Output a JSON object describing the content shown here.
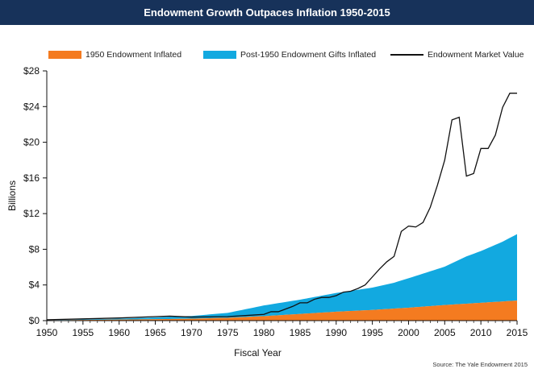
{
  "title": "Endowment Growth Outpaces Inflation 1950-2015",
  "source": "Source: The Yale Endowment 2015",
  "colors": {
    "header": "#17325a",
    "series_1950": "#f47b20",
    "series_post": "#12a9e0",
    "series_market": "#111111"
  },
  "legend": {
    "items": [
      {
        "label": "1950 Endowment Inflated",
        "kind": "swatch"
      },
      {
        "label": "Post-1950 Endowment Gifts Inflated",
        "kind": "swatch"
      },
      {
        "label": "Endowment Market Value",
        "kind": "line"
      }
    ]
  },
  "chart_data": {
    "type": "area",
    "title": "Endowment Growth Outpaces Inflation 1950-2015",
    "xlabel": "Fiscal Year",
    "ylabel": "Billions",
    "xlim": [
      1950,
      2015
    ],
    "ylim": [
      0,
      28
    ],
    "x_ticks": [
      1950,
      1955,
      1960,
      1965,
      1970,
      1975,
      1980,
      1985,
      1990,
      1995,
      2000,
      2005,
      2010,
      2015
    ],
    "y_ticks": [
      0,
      4,
      8,
      12,
      16,
      20,
      24,
      28
    ],
    "y_tick_labels": [
      "$0",
      "$4",
      "$8",
      "$12",
      "$16",
      "$20",
      "$24",
      "$28"
    ],
    "legend_position": "top",
    "grid": false,
    "series": [
      {
        "name": "1950 Endowment Inflated",
        "type": "area",
        "color": "#f47b20",
        "x": [
          1950,
          1955,
          1960,
          1965,
          1970,
          1975,
          1980,
          1985,
          1990,
          1995,
          2000,
          2005,
          2010,
          2015
        ],
        "y": [
          0.03,
          0.08,
          0.12,
          0.16,
          0.22,
          0.32,
          0.5,
          0.75,
          1.0,
          1.2,
          1.45,
          1.75,
          2.0,
          2.25
        ]
      },
      {
        "name": "Post-1950 Endowment Gifts Inflated",
        "type": "area",
        "color": "#12a9e0",
        "x": [
          1950,
          1955,
          1960,
          1965,
          1970,
          1975,
          1980,
          1985,
          1990,
          1995,
          1998,
          2000,
          2003,
          2005,
          2008,
          2010,
          2013,
          2015
        ],
        "y": [
          0.0,
          0.05,
          0.1,
          0.2,
          0.3,
          0.55,
          1.2,
          1.6,
          2.1,
          2.5,
          2.9,
          3.3,
          3.9,
          4.3,
          5.3,
          5.8,
          6.7,
          7.45
        ]
      },
      {
        "name": "Endowment Market Value",
        "type": "line",
        "color": "#111111",
        "x": [
          1950,
          1955,
          1960,
          1965,
          1967,
          1970,
          1975,
          1979,
          1980,
          1981,
          1982,
          1983,
          1984,
          1985,
          1986,
          1987,
          1988,
          1989,
          1990,
          1991,
          1992,
          1993,
          1994,
          1995,
          1996,
          1997,
          1998,
          1999,
          2000,
          2001,
          2002,
          2003,
          2004,
          2005,
          2006,
          2007,
          2008,
          2009,
          2010,
          2011,
          2012,
          2013,
          2014,
          2015
        ],
        "y": [
          0.1,
          0.2,
          0.3,
          0.45,
          0.5,
          0.4,
          0.45,
          0.65,
          0.7,
          1.0,
          1.0,
          1.3,
          1.6,
          2.0,
          2.0,
          2.4,
          2.6,
          2.6,
          2.8,
          3.2,
          3.3,
          3.6,
          4.0,
          4.9,
          5.8,
          6.6,
          7.2,
          10.0,
          10.6,
          10.5,
          11.0,
          12.7,
          15.2,
          18.0,
          22.5,
          22.8,
          16.2,
          16.5,
          19.3,
          19.3,
          20.8,
          23.9,
          25.5,
          25.5
        ]
      }
    ]
  }
}
